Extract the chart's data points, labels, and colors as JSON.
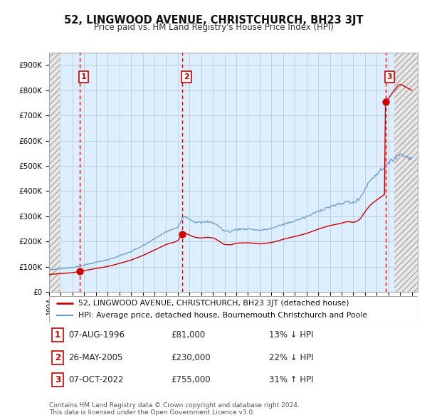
{
  "title": "52, LINGWOOD AVENUE, CHRISTCHURCH, BH23 3JT",
  "subtitle": "Price paid vs. HM Land Registry's House Price Index (HPI)",
  "background_color": "#ffffff",
  "plot_bg_color": "#ddeeff",
  "hatch_color": "#cccccc",
  "grid_color": "#bbccdd",
  "sale_dates": [
    1996.59,
    2005.39,
    2022.76
  ],
  "sale_prices": [
    81000,
    230000,
    755000
  ],
  "sale_labels": [
    "1",
    "2",
    "3"
  ],
  "hpi_start_year": 1994.0,
  "hpi_end_year": 2025.0,
  "vline_years": [
    1996.59,
    2005.39,
    2022.76
  ],
  "vline_color": "#cc0000",
  "hpi_line_color": "#6699cc",
  "price_line_color": "#cc0000",
  "dot_color": "#cc0000",
  "xlim": [
    1994.0,
    2025.5
  ],
  "ylim": [
    0,
    950000
  ],
  "yticks": [
    0,
    100000,
    200000,
    300000,
    400000,
    500000,
    600000,
    700000,
    800000,
    900000
  ],
  "ytick_labels": [
    "£0",
    "£100K",
    "£200K",
    "£300K",
    "£400K",
    "£500K",
    "£600K",
    "£700K",
    "£800K",
    "£900K"
  ],
  "xtick_years": [
    1994,
    1995,
    1996,
    1997,
    1998,
    1999,
    2000,
    2001,
    2002,
    2003,
    2004,
    2005,
    2006,
    2007,
    2008,
    2009,
    2010,
    2011,
    2012,
    2013,
    2014,
    2015,
    2016,
    2017,
    2018,
    2019,
    2020,
    2021,
    2022,
    2023,
    2024,
    2025
  ],
  "legend_line1": "52, LINGWOOD AVENUE, CHRISTCHURCH, BH23 3JT (detached house)",
  "legend_line2": "HPI: Average price, detached house, Bournemouth Christchurch and Poole",
  "table_data": [
    {
      "num": "1",
      "date": "07-AUG-1996",
      "price": "£81,000",
      "pct": "13% ↓ HPI"
    },
    {
      "num": "2",
      "date": "26-MAY-2005",
      "price": "£230,000",
      "pct": "22% ↓ HPI"
    },
    {
      "num": "3",
      "date": "07-OCT-2022",
      "price": "£755,000",
      "pct": "31% ↑ HPI"
    }
  ],
  "footer": "Contains HM Land Registry data © Crown copyright and database right 2024.\nThis data is licensed under the Open Government Licence v3.0.",
  "hatch_left_end": 1994.92,
  "hatch_right_start": 2023.5,
  "data_end": 2025.5
}
